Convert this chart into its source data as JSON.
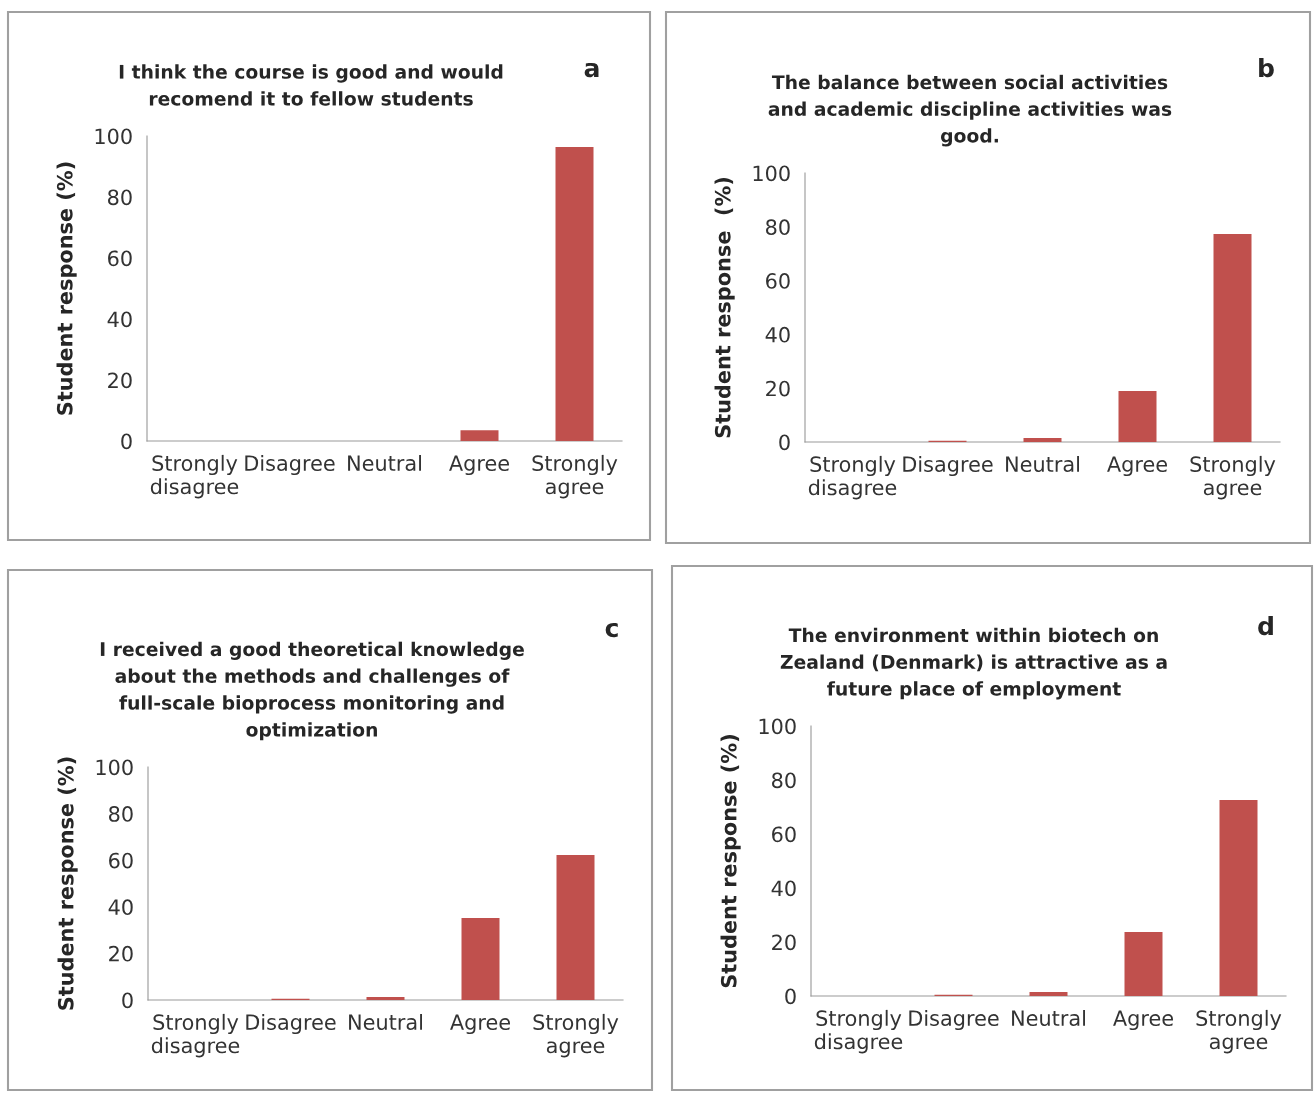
{
  "chart_data": [
    {
      "type": "bar",
      "title": "I think the course is good and would\nrecomend it to fellow students",
      "ylabel": "Student response (%)",
      "annotations": [
        "a"
      ],
      "categories": [
        "Strongly\ndisagree",
        "Disagree",
        "Neutral",
        "Agree",
        "Strongly\nagree"
      ],
      "values": [
        0,
        0,
        0,
        3.5,
        96.4
      ],
      "color": "#c0504d",
      "ylim": [
        0,
        100
      ],
      "yticks": [
        0,
        20,
        40,
        60,
        80,
        100
      ],
      "grid": false
    },
    {
      "type": "bar",
      "title": "The balance between social activities\nand academic discipline activities was\ngood.",
      "ylabel": "Student response  (%)",
      "annotations": [
        "b"
      ],
      "categories": [
        "Strongly\ndisagree",
        "Disagree",
        "Neutral",
        "Agree",
        "Strongly\nagree"
      ],
      "values": [
        0,
        0.5,
        1.5,
        19,
        77.3
      ],
      "color": "#c0504d",
      "ylim": [
        0,
        100
      ],
      "yticks": [
        0,
        20,
        40,
        60,
        80,
        100
      ],
      "grid": false
    },
    {
      "type": "bar",
      "title": "I received a good theoretical knowledge\nabout the methods and challenges of\nfull-scale bioprocess monitoring and\noptimization",
      "ylabel": "Student response (%)",
      "annotations": [
        "c"
      ],
      "categories": [
        "Strongly\ndisagree",
        "Disagree",
        "Neutral",
        "Agree",
        "Strongly\nagree"
      ],
      "values": [
        0,
        0.5,
        1.3,
        35.2,
        62.2
      ],
      "color": "#c0504d",
      "ylim": [
        0,
        100
      ],
      "yticks": [
        0,
        20,
        40,
        60,
        80,
        100
      ],
      "grid": false
    },
    {
      "type": "bar",
      "title": "The environment within biotech on\nZealand (Denmark) is attractive as a\nfuture place of employment",
      "ylabel": "Student response (%)",
      "annotations": [
        "d"
      ],
      "categories": [
        "Strongly\ndisagree",
        "Disagree",
        "Neutral",
        "Agree",
        "Strongly\nagree"
      ],
      "values": [
        0,
        0.5,
        1.5,
        23.7,
        72.6
      ],
      "color": "#c0504d",
      "ylim": [
        0,
        100
      ],
      "yticks": [
        0,
        20,
        40,
        60,
        80,
        100
      ],
      "grid": false
    }
  ]
}
